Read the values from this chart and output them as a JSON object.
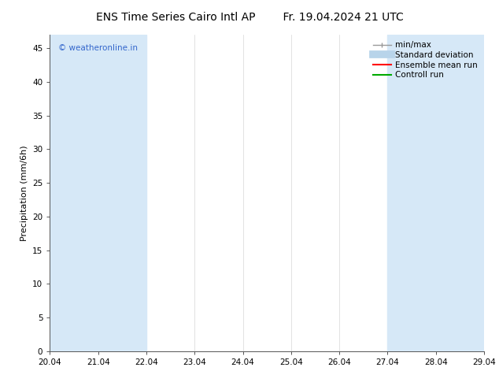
{
  "title_left": "ENS Time Series Cairo Intl AP",
  "title_right": "Fr. 19.04.2024 21 UTC",
  "ylabel": "Precipitation (mm/6h)",
  "watermark": "© weatheronline.in",
  "watermark_color": "#3366cc",
  "xlim": [
    0,
    9
  ],
  "ylim": [
    0,
    47
  ],
  "yticks": [
    0,
    5,
    10,
    15,
    20,
    25,
    30,
    35,
    40,
    45
  ],
  "xtick_labels": [
    "20.04",
    "21.04",
    "22.04",
    "23.04",
    "24.04",
    "25.04",
    "26.04",
    "27.04",
    "28.04",
    "29.04"
  ],
  "bg_color": "#ffffff",
  "plot_bg_color": "#ffffff",
  "shaded_band_color": "#d6e8f7",
  "shaded_bands": [
    {
      "x_start": 0,
      "x_end": 1
    },
    {
      "x_start": 1,
      "x_end": 2
    },
    {
      "x_start": 7,
      "x_end": 8
    },
    {
      "x_start": 8,
      "x_end": 9
    }
  ],
  "legend_items": [
    {
      "label": "min/max",
      "color": "#aaaaaa",
      "lw": 1.0
    },
    {
      "label": "Standard deviation",
      "color": "#b8d4ea",
      "lw": 7
    },
    {
      "label": "Ensemble mean run",
      "color": "#ff0000",
      "lw": 1.5
    },
    {
      "label": "Controll run",
      "color": "#00aa00",
      "lw": 1.5
    }
  ],
  "title_fontsize": 10,
  "axis_label_fontsize": 8,
  "tick_fontsize": 7.5,
  "legend_fontsize": 7.5
}
